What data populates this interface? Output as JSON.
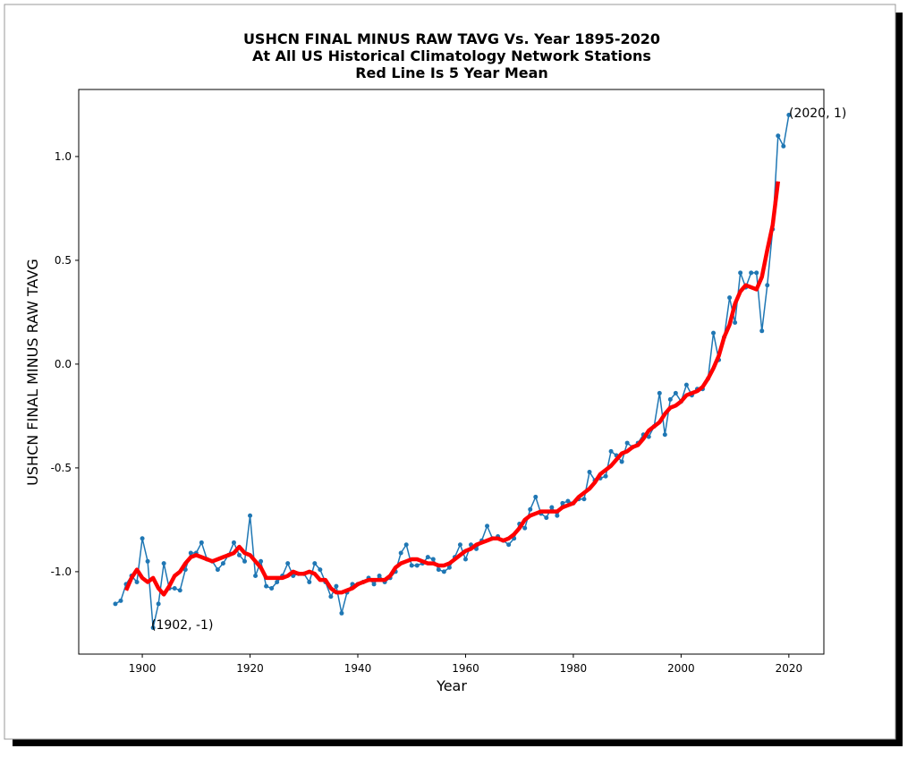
{
  "chart_data": {
    "type": "line",
    "title": [
      "USHCN FINAL MINUS RAW TAVG Vs. Year 1895-2020",
      "At All US Historical Climatology Network Stations",
      "Red Line Is 5 Year Mean"
    ],
    "x_label": "Year",
    "y_label": "USHCN FINAL MINUS RAW TAVG",
    "x": [
      1895,
      1896,
      1897,
      1898,
      1899,
      1900,
      1901,
      1902,
      1903,
      1904,
      1905,
      1906,
      1907,
      1908,
      1909,
      1910,
      1911,
      1912,
      1913,
      1914,
      1915,
      1916,
      1917,
      1918,
      1919,
      1920,
      1921,
      1922,
      1923,
      1924,
      1925,
      1926,
      1927,
      1928,
      1929,
      1930,
      1931,
      1932,
      1933,
      1934,
      1935,
      1936,
      1937,
      1938,
      1939,
      1940,
      1941,
      1942,
      1943,
      1944,
      1945,
      1946,
      1947,
      1948,
      1949,
      1950,
      1951,
      1952,
      1953,
      1954,
      1955,
      1956,
      1957,
      1958,
      1959,
      1960,
      1961,
      1962,
      1963,
      1964,
      1965,
      1966,
      1967,
      1968,
      1969,
      1970,
      1971,
      1972,
      1973,
      1974,
      1975,
      1976,
      1977,
      1978,
      1979,
      1980,
      1981,
      1982,
      1983,
      1984,
      1985,
      1986,
      1987,
      1988,
      1989,
      1990,
      1991,
      1992,
      1993,
      1994,
      1995,
      1996,
      1997,
      1998,
      1999,
      2000,
      2001,
      2002,
      2003,
      2004,
      2005,
      2006,
      2007,
      2008,
      2009,
      2010,
      2011,
      2012,
      2013,
      2014,
      2015,
      2016,
      2017,
      2018,
      2019,
      2020
    ],
    "series": [
      {
        "color": "#1f77b4",
        "markers": true,
        "values": [
          -1.155,
          -1.14,
          -1.06,
          -1.02,
          -1.05,
          -0.84,
          -0.95,
          -1.27,
          -1.155,
          -0.96,
          -1.08,
          -1.08,
          -1.09,
          -0.99,
          -0.91,
          -0.91,
          -0.86,
          -0.94,
          -0.95,
          -0.99,
          -0.96,
          -0.92,
          -0.86,
          -0.92,
          -0.95,
          -0.73,
          -1.02,
          -0.95,
          -1.07,
          -1.08,
          -1.05,
          -1.02,
          -0.96,
          -1.02,
          -1.01,
          -1.01,
          -1.05,
          -0.96,
          -0.99,
          -1.05,
          -1.12,
          -1.07,
          -1.2,
          -1.1,
          -1.06,
          -1.06,
          -1.05,
          -1.03,
          -1.06,
          -1.02,
          -1.05,
          -1.03,
          -1.0,
          -0.91,
          -0.87,
          -0.97,
          -0.97,
          -0.96,
          -0.93,
          -0.94,
          -0.99,
          -1.0,
          -0.98,
          -0.93,
          -0.87,
          -0.94,
          -0.87,
          -0.89,
          -0.85,
          -0.78,
          -0.84,
          -0.83,
          -0.85,
          -0.87,
          -0.84,
          -0.77,
          -0.79,
          -0.7,
          -0.64,
          -0.72,
          -0.74,
          -0.69,
          -0.73,
          -0.67,
          -0.66,
          -0.67,
          -0.65,
          -0.65,
          -0.52,
          -0.56,
          -0.55,
          -0.54,
          -0.42,
          -0.44,
          -0.47,
          -0.38,
          -0.4,
          -0.38,
          -0.34,
          -0.35,
          -0.3,
          -0.14,
          -0.34,
          -0.17,
          -0.14,
          -0.18,
          -0.1,
          -0.15,
          -0.12,
          -0.12,
          -0.07,
          0.15,
          0.02,
          0.13,
          0.32,
          0.2,
          0.44,
          0.37,
          0.44,
          0.44,
          0.16,
          0.38,
          0.65,
          1.1,
          1.05,
          1.2
        ]
      },
      {
        "color": "#ff0000",
        "markers": false,
        "values": [
          null,
          null,
          -1.09,
          -1.03,
          -0.99,
          -1.03,
          -1.05,
          -1.03,
          -1.08,
          -1.11,
          -1.07,
          -1.02,
          -1.0,
          -0.96,
          -0.93,
          -0.92,
          -0.93,
          -0.94,
          -0.95,
          -0.94,
          -0.93,
          -0.92,
          -0.91,
          -0.88,
          -0.91,
          -0.92,
          -0.95,
          -0.98,
          -1.03,
          -1.03,
          -1.03,
          -1.03,
          -1.02,
          -1.0,
          -1.01,
          -1.01,
          -1.0,
          -1.01,
          -1.04,
          -1.04,
          -1.08,
          -1.1,
          -1.1,
          -1.09,
          -1.08,
          -1.06,
          -1.05,
          -1.04,
          -1.04,
          -1.04,
          -1.04,
          -1.02,
          -0.98,
          -0.96,
          -0.95,
          -0.94,
          -0.94,
          -0.95,
          -0.96,
          -0.96,
          -0.97,
          -0.97,
          -0.96,
          -0.94,
          -0.92,
          -0.9,
          -0.89,
          -0.87,
          -0.86,
          -0.85,
          -0.84,
          -0.84,
          -0.85,
          -0.84,
          -0.82,
          -0.79,
          -0.75,
          -0.73,
          -0.72,
          -0.71,
          -0.71,
          -0.71,
          -0.71,
          -0.69,
          -0.68,
          -0.67,
          -0.64,
          -0.62,
          -0.6,
          -0.57,
          -0.53,
          -0.51,
          -0.49,
          -0.46,
          -0.43,
          -0.42,
          -0.4,
          -0.39,
          -0.36,
          -0.32,
          -0.3,
          -0.28,
          -0.24,
          -0.21,
          -0.2,
          -0.18,
          -0.15,
          -0.14,
          -0.13,
          -0.11,
          -0.07,
          -0.02,
          0.04,
          0.13,
          0.19,
          0.29,
          0.35,
          0.38,
          0.37,
          0.36,
          0.42,
          0.55,
          0.67,
          0.88,
          null,
          null
        ]
      }
    ],
    "annotations": [
      "(1902, -1)",
      "(2020, 1)"
    ],
    "xlim": [
      1888.2,
      2026.5
    ],
    "xticks": [
      1900,
      1920,
      1940,
      1960,
      1980,
      2000,
      2020
    ],
    "ylim": [
      -1.397,
      1.323
    ],
    "yticks": [
      {
        "value": -1,
        "label": "-1.0"
      },
      -0.5,
      {
        "value": 0,
        "label": "0.0"
      },
      0.5,
      {
        "value": 1,
        "label": "1.0"
      }
    ]
  }
}
